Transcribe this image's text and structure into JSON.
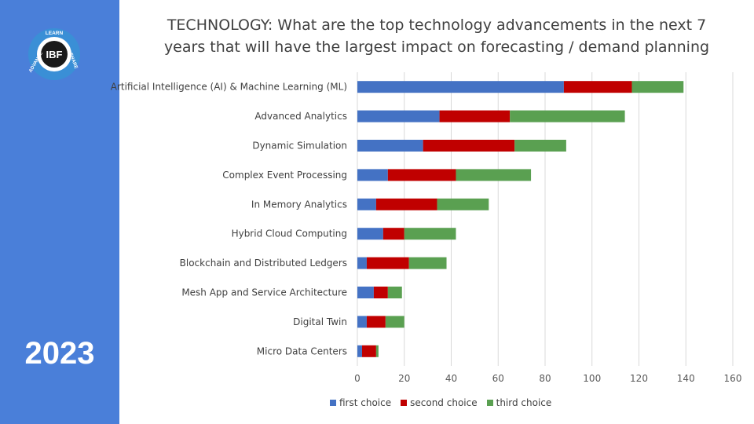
{
  "year": "2023",
  "logo": {
    "text_top": "LEARN",
    "text_right": "SHARE",
    "text_left": "ADVANCE",
    "center": "IBF"
  },
  "chart_data": {
    "type": "bar",
    "orientation": "horizontal",
    "stacked": true,
    "title": "TECHNOLOGY: What are the top technology advancements in the next 7 years that will have the largest impact on forecasting / demand planning",
    "title_lines": [
      "TECHNOLOGY: What are the top technology advancements in the next 7",
      "years that will have the largest impact on forecasting / demand planning"
    ],
    "categories": [
      "Artificial Intelligence (AI) & Machine Learning (ML)",
      "Advanced Analytics",
      "Dynamic Simulation",
      "Complex Event Processing",
      "In Memory Analytics",
      "Hybrid Cloud Computing",
      "Blockchain and Distributed Ledgers",
      "Mesh App and Service Architecture",
      "Digital Twin",
      "Micro Data Centers"
    ],
    "series": [
      {
        "name": "first choice",
        "color": "#4472c4",
        "values": [
          88,
          35,
          28,
          13,
          8,
          11,
          4,
          7,
          4,
          2
        ]
      },
      {
        "name": "second choice",
        "color": "#c00000",
        "values": [
          29,
          30,
          39,
          29,
          26,
          9,
          18,
          6,
          8,
          6
        ]
      },
      {
        "name": "third choice",
        "color": "#5aa051",
        "values": [
          22,
          49,
          22,
          32,
          22,
          22,
          16,
          6,
          8,
          1
        ]
      }
    ],
    "xlim": [
      0,
      160
    ],
    "xticks": [
      0,
      20,
      40,
      60,
      80,
      100,
      120,
      140,
      160
    ],
    "grid": true,
    "legend_position": "bottom"
  }
}
